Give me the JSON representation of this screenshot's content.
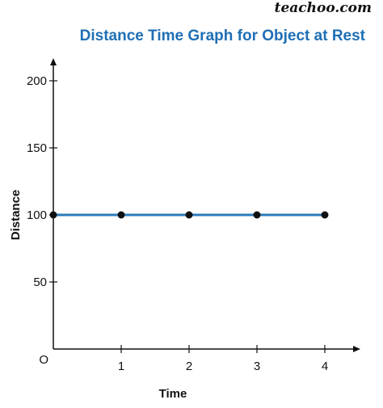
{
  "watermark": "teachoo.com",
  "chart_data": {
    "type": "line",
    "title": "Distance Time Graph for Object at Rest",
    "xlabel": "Time",
    "ylabel": "Distance",
    "origin_label": "O",
    "x": [
      0,
      1,
      2,
      3,
      4
    ],
    "series": [
      {
        "values": [
          100,
          100,
          100,
          100,
          100
        ]
      }
    ],
    "xticks": [
      1,
      2,
      3,
      4
    ],
    "yticks": [
      50,
      100,
      150,
      200
    ],
    "xlim": [
      0,
      4.5
    ],
    "ylim": [
      0,
      220
    ],
    "grid": false,
    "colors": {
      "line": "#2b7bbd",
      "marker": "#111111",
      "title": "#1f6fb5"
    }
  }
}
